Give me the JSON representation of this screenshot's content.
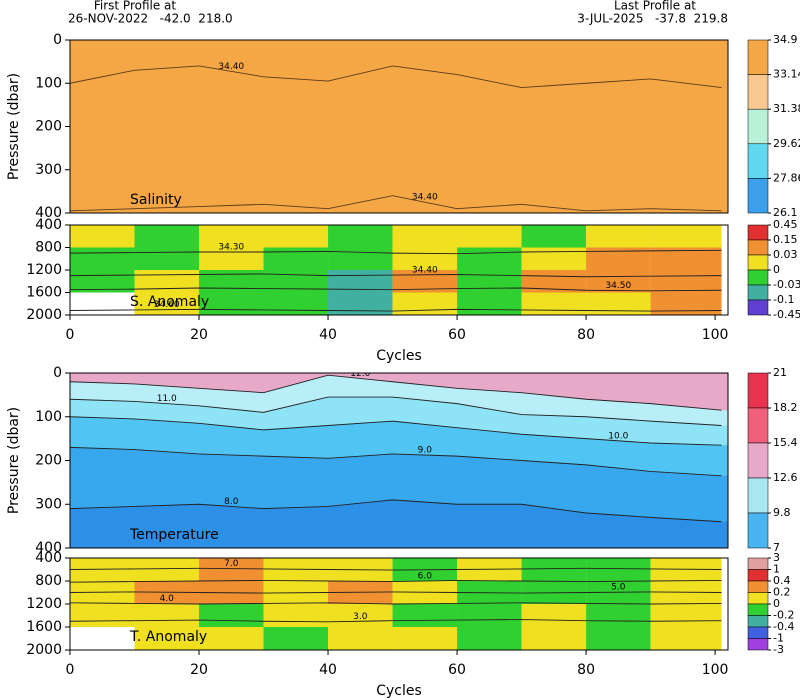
{
  "header": {
    "first_title": "First Profile at",
    "first_info": "26-NOV-2022   -42.0  218.0",
    "last_title": "Last Profile at",
    "last_info": "3-JUL-2025   -37.8  219.8"
  },
  "chart_data": [
    {
      "type": "contour",
      "label": "Salinity",
      "ylabel": "Pressure (dbar)",
      "fill": "#f5a645",
      "xlim": [
        0,
        102
      ],
      "ylim": [
        0,
        400
      ],
      "yticks": [
        0,
        100,
        200,
        300,
        400
      ],
      "y_inverted": true,
      "x": [
        0,
        10,
        20,
        30,
        40,
        50,
        60,
        70,
        80,
        90,
        101
      ],
      "series": [
        {
          "name": "34.40",
          "color": "#5a3a1a",
          "values": [
            100,
            70,
            60,
            85,
            95,
            60,
            80,
            110,
            100,
            90,
            110
          ]
        },
        {
          "name": "34.40",
          "color": "#5a3a1a",
          "values": [
            395,
            390,
            385,
            380,
            390,
            360,
            390,
            380,
            395,
            390,
            395
          ]
        }
      ],
      "colorbar": {
        "ticks": [
          34.9,
          33.14,
          31.38,
          29.62,
          27.86,
          26.1
        ],
        "colors": [
          "#f5a645",
          "#f8c890",
          "#b8f0d8",
          "#60d8f0",
          "#3aa0ec"
        ]
      }
    },
    {
      "type": "grid",
      "label": "S. Anomaly",
      "xlabel": "Cycles",
      "xlim": [
        0,
        102
      ],
      "xticks": [
        0,
        20,
        40,
        60,
        80,
        100
      ],
      "ylim": [
        400,
        2000
      ],
      "yticks": [
        400,
        800,
        1200,
        1600,
        2000
      ],
      "y_inverted": true,
      "x": [
        0,
        10,
        20,
        30,
        40,
        50,
        60,
        70,
        80,
        90,
        101
      ],
      "grid": {
        "xbins": [
          0,
          10,
          20,
          30,
          40,
          50,
          60,
          70,
          80,
          90,
          101
        ],
        "ybins": [
          400,
          800,
          1200,
          1600,
          2000
        ],
        "values": [
          [
            0.01,
            -0.01,
            0.01,
            0.01,
            -0.01,
            0.01,
            0.01,
            -0.01,
            0.01,
            0.01
          ],
          [
            -0.01,
            -0.01,
            0.01,
            -0.01,
            -0.01,
            0.01,
            -0.01,
            0.01,
            0.05,
            0.05
          ],
          [
            -0.01,
            0.01,
            -0.01,
            -0.02,
            -0.05,
            0.05,
            -0.01,
            0.05,
            0.05,
            0.05
          ],
          [
            null,
            0.01,
            -0.01,
            -0.01,
            -0.05,
            0.01,
            -0.01,
            0.01,
            0.01,
            0.05
          ]
        ]
      },
      "series": [
        {
          "name": "34.30",
          "color": "#000000",
          "values": [
            900,
            890,
            880,
            880,
            870,
            900,
            910,
            880,
            870,
            860,
            850
          ]
        },
        {
          "name": "34.40",
          "color": "#333333",
          "values": [
            1300,
            1290,
            1280,
            1270,
            1300,
            1290,
            1280,
            1300,
            1320,
            1310,
            1300
          ]
        },
        {
          "name": "34.50",
          "color": "#333333",
          "values": [
            1550,
            1540,
            1520,
            1530,
            1540,
            1550,
            1530,
            1520,
            1560,
            1570,
            1560
          ]
        },
        {
          "name": "34.60",
          "color": "#333333",
          "values": [
            1920,
            1910,
            1900,
            1910,
            1920,
            1930,
            1900,
            1910,
            1920,
            1930,
            1920
          ]
        }
      ],
      "colorbar": {
        "ticks": [
          0.45,
          0.15,
          0.03,
          0,
          -0.03,
          -0.1,
          -0.45
        ],
        "colors": [
          "#e03030",
          "#f09030",
          "#f0e020",
          "#30d030",
          "#40b0a0",
          "#6040d0"
        ]
      }
    },
    {
      "type": "contour",
      "label": "Temperature",
      "ylabel": "Pressure (dbar)",
      "fill": "#2b90e6",
      "xlim": [
        0,
        102
      ],
      "ylim": [
        0,
        400
      ],
      "yticks": [
        0,
        100,
        200,
        300,
        400
      ],
      "y_inverted": true,
      "x": [
        0,
        10,
        20,
        30,
        40,
        50,
        60,
        70,
        80,
        90,
        101
      ],
      "series": [
        {
          "name": "8.0",
          "color": "#38a8ee",
          "values": [
            310,
            305,
            300,
            310,
            305,
            290,
            300,
            300,
            320,
            330,
            340
          ]
        },
        {
          "name": "9.0",
          "color": "#50c4f2",
          "values": [
            170,
            175,
            185,
            190,
            195,
            185,
            190,
            200,
            210,
            225,
            235
          ]
        },
        {
          "name": "10.0",
          "color": "#8ee4f6",
          "values": [
            100,
            105,
            115,
            130,
            120,
            110,
            125,
            140,
            150,
            160,
            165
          ]
        },
        {
          "name": "11.0",
          "color": "#b8eef8",
          "values": [
            60,
            65,
            75,
            90,
            55,
            55,
            70,
            95,
            100,
            110,
            120
          ]
        },
        {
          "name": "12.0",
          "color": "#e8a8c8",
          "values": [
            20,
            25,
            35,
            45,
            5,
            20,
            35,
            45,
            60,
            70,
            85
          ]
        }
      ],
      "colorbar": {
        "ticks": [
          21,
          18.2,
          15.4,
          12.6,
          9.8,
          7
        ],
        "colors": [
          "#e8324e",
          "#f0607a",
          "#e8a8c8",
          "#a8e6f0",
          "#48b4f0"
        ]
      }
    },
    {
      "type": "grid",
      "label": "T. Anomaly",
      "xlabel": "Cycles",
      "xlim": [
        0,
        102
      ],
      "xticks": [
        0,
        20,
        40,
        60,
        80,
        100
      ],
      "ylim": [
        400,
        2000
      ],
      "yticks": [
        400,
        800,
        1200,
        1600,
        2000
      ],
      "y_inverted": true,
      "x": [
        0,
        10,
        20,
        30,
        40,
        50,
        60,
        70,
        80,
        90,
        101
      ],
      "grid": {
        "xbins": [
          0,
          10,
          20,
          30,
          40,
          50,
          60,
          70,
          80,
          90,
          101
        ],
        "ybins": [
          400,
          800,
          1200,
          1600,
          2000
        ],
        "values": [
          [
            0.1,
            0.1,
            0.3,
            0.1,
            0.1,
            -0.1,
            0.1,
            -0.1,
            -0.1,
            0.1
          ],
          [
            0.1,
            0.3,
            0.3,
            0.1,
            0.3,
            0.1,
            -0.1,
            -0.1,
            -0.1,
            0.1
          ],
          [
            0.1,
            0.1,
            -0.1,
            0.1,
            0.1,
            -0.1,
            -0.1,
            0.1,
            -0.1,
            0.1
          ],
          [
            null,
            0.1,
            0.1,
            -0.1,
            0.1,
            0.1,
            -0.1,
            0.1,
            -0.1,
            0.1
          ]
        ]
      },
      "series": [
        {
          "name": "7.0",
          "color": "#333333",
          "values": [
            600,
            590,
            580,
            590,
            600,
            610,
            600,
            590,
            580,
            590,
            600
          ]
        },
        {
          "name": "6.0",
          "color": "#333333",
          "values": [
            820,
            810,
            800,
            790,
            800,
            810,
            790,
            800,
            810,
            800,
            790
          ]
        },
        {
          "name": "5.0",
          "color": "#333333",
          "values": [
            1000,
            990,
            1000,
            1010,
            1000,
            990,
            1000,
            1010,
            1000,
            990,
            1000
          ]
        },
        {
          "name": "4.0",
          "color": "#333333",
          "values": [
            1180,
            1190,
            1200,
            1190,
            1180,
            1200,
            1190,
            1180,
            1190,
            1200,
            1190
          ]
        },
        {
          "name": "3.0",
          "color": "#333333",
          "values": [
            1500,
            1490,
            1480,
            1500,
            1510,
            1490,
            1480,
            1470,
            1490,
            1500,
            1490
          ]
        }
      ],
      "colorbar": {
        "ticks": [
          3,
          1,
          0.4,
          0.2,
          0,
          -0.2,
          -0.4,
          -1,
          -3
        ],
        "colors": [
          "#e0a0a0",
          "#e03030",
          "#f09030",
          "#f0e020",
          "#30d030",
          "#40b0a0",
          "#4060e0",
          "#a040e0"
        ]
      }
    }
  ]
}
